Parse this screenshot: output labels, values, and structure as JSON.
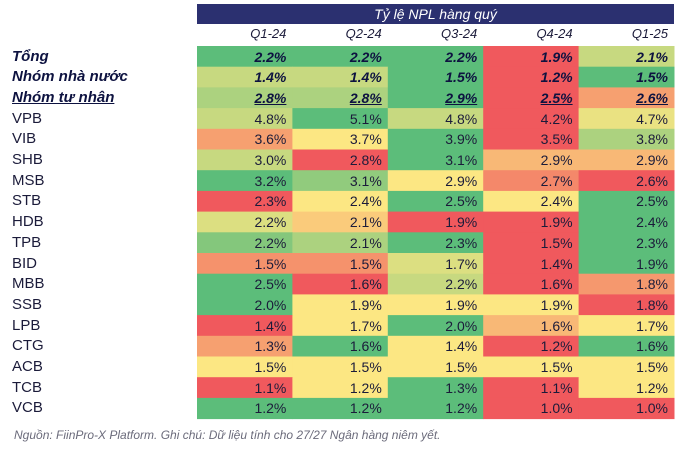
{
  "chart_data": {
    "type": "heatmap",
    "title": "Tỷ lệ NPL hàng quý",
    "columns": [
      "Q1-24",
      "Q2-24",
      "Q3-24",
      "Q4-24",
      "Q1-25"
    ],
    "rows": [
      {
        "name": "Tổng",
        "values": [
          "2.2%",
          "2.2%",
          "2.2%",
          "1.9%",
          "2.1%"
        ],
        "bold": true,
        "underline": false
      },
      {
        "name": "Nhóm nhà nước",
        "values": [
          "1.4%",
          "1.4%",
          "1.5%",
          "1.2%",
          "1.5%"
        ],
        "bold": true,
        "underline": false
      },
      {
        "name": "Nhóm tư nhân",
        "values": [
          "2.8%",
          "2.8%",
          "2.9%",
          "2.5%",
          "2.6%"
        ],
        "bold": true,
        "underline": true
      },
      {
        "name": "VPB",
        "values": [
          "4.8%",
          "5.1%",
          "4.8%",
          "4.2%",
          "4.7%"
        ]
      },
      {
        "name": "VIB",
        "values": [
          "3.6%",
          "3.7%",
          "3.9%",
          "3.5%",
          "3.8%"
        ]
      },
      {
        "name": "SHB",
        "values": [
          "3.0%",
          "2.8%",
          "3.1%",
          "2.9%",
          "2.9%"
        ]
      },
      {
        "name": "MSB",
        "values": [
          "3.2%",
          "3.1%",
          "2.9%",
          "2.7%",
          "2.6%"
        ]
      },
      {
        "name": "STB",
        "values": [
          "2.3%",
          "2.4%",
          "2.5%",
          "2.4%",
          "2.5%"
        ]
      },
      {
        "name": "HDB",
        "values": [
          "2.2%",
          "2.1%",
          "1.9%",
          "1.9%",
          "2.4%"
        ]
      },
      {
        "name": "TPB",
        "values": [
          "2.2%",
          "2.1%",
          "2.3%",
          "1.5%",
          "2.3%"
        ]
      },
      {
        "name": "BID",
        "values": [
          "1.5%",
          "1.5%",
          "1.7%",
          "1.4%",
          "1.9%"
        ]
      },
      {
        "name": "MBB",
        "values": [
          "2.5%",
          "1.6%",
          "2.2%",
          "1.6%",
          "1.8%"
        ]
      },
      {
        "name": "SSB",
        "values": [
          "2.0%",
          "1.9%",
          "1.9%",
          "1.9%",
          "1.8%"
        ]
      },
      {
        "name": "LPB",
        "values": [
          "1.4%",
          "1.7%",
          "2.0%",
          "1.6%",
          "1.7%"
        ]
      },
      {
        "name": "CTG",
        "values": [
          "1.3%",
          "1.6%",
          "1.4%",
          "1.2%",
          "1.6%"
        ]
      },
      {
        "name": "ACB",
        "values": [
          "1.5%",
          "1.5%",
          "1.5%",
          "1.5%",
          "1.5%"
        ]
      },
      {
        "name": "TCB",
        "values": [
          "1.1%",
          "1.2%",
          "1.3%",
          "1.1%",
          "1.2%"
        ]
      },
      {
        "name": "VCB",
        "values": [
          "1.2%",
          "1.2%",
          "1.2%",
          "1.0%",
          "1.0%"
        ]
      }
    ],
    "colorscale": {
      "low": "#f0595d",
      "mid": "#fce783",
      "high": "#5cbd7a",
      "method": "per-row"
    }
  },
  "header_color": "#2b3070",
  "footnote": "Nguồn: FiinPro-X Platform. Ghi chú: Dữ liệu tính cho 27/27 Ngân hàng niêm yết."
}
